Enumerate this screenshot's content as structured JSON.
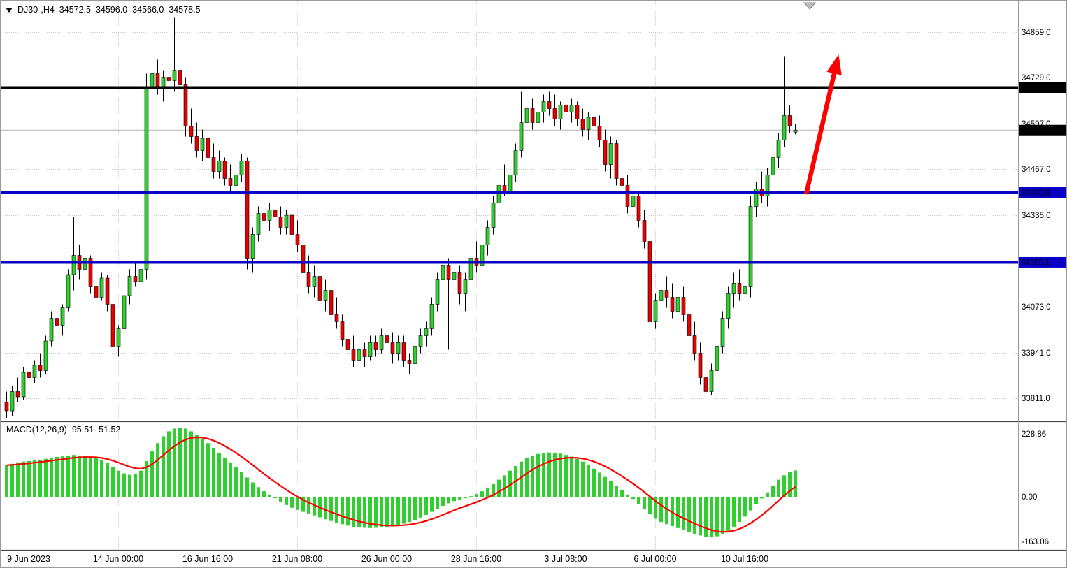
{
  "window": {
    "header": {
      "symbol_period": "DJ30-,H4",
      "open": "34572.5",
      "high": "34596.0",
      "low": "34566.0",
      "close": "34578.5"
    },
    "macd_label": {
      "name": "MACD(12,26,9)",
      "macd_value": "95.51",
      "signal_value": "51.52"
    }
  },
  "colors": {
    "bull": "#2fcf2f",
    "bear": "#e60000",
    "wick": "#000000",
    "grid": "#c9c9c9",
    "bid_line": "#b4b4b4",
    "histogram": "#2fcf2f",
    "signal": "#ff0000",
    "arrow": "#ff0000",
    "badge_text": "#ffffff",
    "separator": "#4a4a4a",
    "axis_border": "#9a9a9a",
    "shift_marker_fill": "#bdbdbd",
    "shift_marker_stroke": "#7f7f7f"
  },
  "chart_data": {
    "type": "candlestick+macd",
    "symbol": "DJ30-",
    "timeframe": "H4",
    "grid": true,
    "ylim": [
      33749,
      34949
    ],
    "price_axis_ticks": [
      "34859.0",
      "34729.0",
      "34597.0",
      "34467.0",
      "34335.0",
      "34203.0",
      "34073.0",
      "33941.0",
      "33811.0"
    ],
    "x_labels": [
      {
        "bar": 4,
        "label": "9 Jun 2023"
      },
      {
        "bar": 20,
        "label": "14 Jun 00:00"
      },
      {
        "bar": 36,
        "label": "16 Jun 16:00"
      },
      {
        "bar": 52,
        "label": "21 Jun 08:00"
      },
      {
        "bar": 68,
        "label": "26 Jun 00:00"
      },
      {
        "bar": 84,
        "label": "28 Jun 16:00"
      },
      {
        "bar": 100,
        "label": "3 Jul 08:00"
      },
      {
        "bar": 116,
        "label": "6 Jul 00:00"
      },
      {
        "bar": 132,
        "label": "10 Jul 16:00"
      }
    ],
    "hlines": [
      {
        "price": 34700.0,
        "label": "34700.0",
        "color": "#000000",
        "width": 4
      },
      {
        "price": 34400.0,
        "label": "34400.0",
        "color": "#0a00c4",
        "width": 4
      },
      {
        "price": 34200.1,
        "label": "34200.1",
        "color": "#0a00c4",
        "width": 4
      }
    ],
    "bid": {
      "price": 34578.5,
      "label": "34578.5"
    },
    "arrow": {
      "from_bar": 143,
      "from_price": 34395,
      "to_bar": 148.8,
      "to_price": 34795
    },
    "candles": [
      [
        33800,
        33830,
        33755,
        33775
      ],
      [
        33775,
        33845,
        33760,
        33830
      ],
      [
        33830,
        33870,
        33800,
        33815
      ],
      [
        33815,
        33900,
        33805,
        33885
      ],
      [
        33885,
        33930,
        33850,
        33870
      ],
      [
        33870,
        33920,
        33855,
        33905
      ],
      [
        33905,
        33940,
        33870,
        33890
      ],
      [
        33890,
        33990,
        33880,
        33975
      ],
      [
        33975,
        34060,
        33960,
        34040
      ],
      [
        34040,
        34100,
        34000,
        34020
      ],
      [
        34020,
        34080,
        33990,
        34070
      ],
      [
        34070,
        34180,
        34060,
        34165
      ],
      [
        34165,
        34330,
        34120,
        34220
      ],
      [
        34220,
        34250,
        34150,
        34180
      ],
      [
        34180,
        34230,
        34140,
        34210
      ],
      [
        34210,
        34220,
        34110,
        34130
      ],
      [
        34130,
        34180,
        34080,
        34100
      ],
      [
        34100,
        34170,
        34090,
        34155
      ],
      [
        34155,
        34165,
        34060,
        34080
      ],
      [
        34080,
        34090,
        33790,
        33960
      ],
      [
        33960,
        34020,
        33930,
        34010
      ],
      [
        34010,
        34120,
        34000,
        34105
      ],
      [
        34105,
        34180,
        34080,
        34160
      ],
      [
        34160,
        34200,
        34130,
        34145
      ],
      [
        34145,
        34195,
        34120,
        34180
      ],
      [
        34180,
        34740,
        34150,
        34700
      ],
      [
        34700,
        34760,
        34630,
        34740
      ],
      [
        34740,
        34780,
        34680,
        34700
      ],
      [
        34700,
        34750,
        34660,
        34730
      ],
      [
        34730,
        34860,
        34700,
        34720
      ],
      [
        34720,
        34900,
        34690,
        34750
      ],
      [
        34750,
        34780,
        34700,
        34710
      ],
      [
        34710,
        34730,
        34560,
        34590
      ],
      [
        34590,
        34640,
        34540,
        34560
      ],
      [
        34560,
        34600,
        34500,
        34520
      ],
      [
        34520,
        34580,
        34490,
        34555
      ],
      [
        34555,
        34570,
        34480,
        34500
      ],
      [
        34500,
        34540,
        34440,
        34460
      ],
      [
        34460,
        34520,
        34440,
        34490
      ],
      [
        34490,
        34500,
        34420,
        34440
      ],
      [
        34440,
        34480,
        34400,
        34420
      ],
      [
        34420,
        34470,
        34400,
        34450
      ],
      [
        34450,
        34510,
        34430,
        34490
      ],
      [
        34490,
        34500,
        34180,
        34210
      ],
      [
        34210,
        34300,
        34170,
        34280
      ],
      [
        34280,
        34360,
        34260,
        34340
      ],
      [
        34340,
        34380,
        34300,
        34320
      ],
      [
        34320,
        34370,
        34290,
        34350
      ],
      [
        34350,
        34380,
        34310,
        34330
      ],
      [
        34330,
        34360,
        34280,
        34300
      ],
      [
        34300,
        34350,
        34280,
        34335
      ],
      [
        34335,
        34350,
        34260,
        34280
      ],
      [
        34280,
        34320,
        34230,
        34250
      ],
      [
        34250,
        34260,
        34150,
        34170
      ],
      [
        34170,
        34220,
        34110,
        34130
      ],
      [
        34130,
        34190,
        34100,
        34160
      ],
      [
        34160,
        34170,
        34070,
        34090
      ],
      [
        34090,
        34150,
        34060,
        34120
      ],
      [
        34120,
        34130,
        34030,
        34050
      ],
      [
        34050,
        34100,
        34010,
        34030
      ],
      [
        34030,
        34050,
        33960,
        33980
      ],
      [
        33980,
        34020,
        33930,
        33950
      ],
      [
        33950,
        33990,
        33900,
        33920
      ],
      [
        33920,
        33970,
        33910,
        33950
      ],
      [
        33950,
        33970,
        33900,
        33930
      ],
      [
        33930,
        33990,
        33920,
        33970
      ],
      [
        33970,
        33990,
        33930,
        33950
      ],
      [
        33950,
        34010,
        33940,
        33990
      ],
      [
        33990,
        34020,
        33950,
        33970
      ],
      [
        33970,
        34000,
        33910,
        33940
      ],
      [
        33940,
        33990,
        33920,
        33970
      ],
      [
        33970,
        33990,
        33900,
        33920
      ],
      [
        33920,
        33940,
        33880,
        33910
      ],
      [
        33910,
        33970,
        33900,
        33960
      ],
      [
        33960,
        34010,
        33940,
        33990
      ],
      [
        33990,
        34030,
        33960,
        34010
      ],
      [
        34010,
        34100,
        33990,
        34080
      ],
      [
        34080,
        34170,
        34060,
        34150
      ],
      [
        34150,
        34220,
        34110,
        34190
      ],
      [
        34190,
        34210,
        33950,
        34150
      ],
      [
        34150,
        34200,
        34110,
        34170
      ],
      [
        34170,
        34190,
        34080,
        34110
      ],
      [
        34110,
        34170,
        34060,
        34150
      ],
      [
        34150,
        34230,
        34130,
        34210
      ],
      [
        34210,
        34260,
        34170,
        34190
      ],
      [
        34190,
        34270,
        34180,
        34250
      ],
      [
        34250,
        34320,
        34220,
        34300
      ],
      [
        34300,
        34390,
        34280,
        34370
      ],
      [
        34370,
        34440,
        34340,
        34420
      ],
      [
        34420,
        34480,
        34390,
        34400
      ],
      [
        34400,
        34470,
        34370,
        34450
      ],
      [
        34450,
        34540,
        34430,
        34520
      ],
      [
        34520,
        34690,
        34500,
        34600
      ],
      [
        34600,
        34660,
        34570,
        34640
      ],
      [
        34640,
        34670,
        34580,
        34600
      ],
      [
        34600,
        34650,
        34560,
        34630
      ],
      [
        34630,
        34680,
        34600,
        34660
      ],
      [
        34660,
        34690,
        34620,
        34640
      ],
      [
        34640,
        34680,
        34590,
        34610
      ],
      [
        34610,
        34660,
        34580,
        34650
      ],
      [
        34650,
        34680,
        34610,
        34630
      ],
      [
        34630,
        34670,
        34600,
        34650
      ],
      [
        34650,
        34660,
        34590,
        34610
      ],
      [
        34610,
        34640,
        34560,
        34580
      ],
      [
        34580,
        34630,
        34550,
        34615
      ],
      [
        34615,
        34650,
        34570,
        34590
      ],
      [
        34590,
        34620,
        34530,
        34550
      ],
      [
        34550,
        34580,
        34460,
        34480
      ],
      [
        34480,
        34560,
        34440,
        34540
      ],
      [
        34540,
        34550,
        34420,
        34440
      ],
      [
        34440,
        34490,
        34400,
        34420
      ],
      [
        34420,
        34450,
        34340,
        34360
      ],
      [
        34360,
        34410,
        34330,
        34390
      ],
      [
        34390,
        34400,
        34300,
        34320
      ],
      [
        34320,
        34350,
        34240,
        34260
      ],
      [
        34260,
        34280,
        33990,
        34030
      ],
      [
        34030,
        34110,
        34010,
        34090
      ],
      [
        34090,
        34150,
        34060,
        34120
      ],
      [
        34120,
        34160,
        34070,
        34100
      ],
      [
        34100,
        34140,
        34040,
        34060
      ],
      [
        34060,
        34120,
        34040,
        34100
      ],
      [
        34100,
        34130,
        34030,
        34050
      ],
      [
        34050,
        34080,
        33970,
        33990
      ],
      [
        33990,
        34030,
        33920,
        33940
      ],
      [
        33940,
        33970,
        33850,
        33870
      ],
      [
        33870,
        33900,
        33810,
        33830
      ],
      [
        33830,
        33910,
        33820,
        33890
      ],
      [
        33890,
        33980,
        33870,
        33960
      ],
      [
        33960,
        34060,
        33940,
        34040
      ],
      [
        34040,
        34130,
        34010,
        34110
      ],
      [
        34110,
        34170,
        34070,
        34140
      ],
      [
        34140,
        34180,
        34090,
        34110
      ],
      [
        34110,
        34160,
        34080,
        34130
      ],
      [
        34130,
        34390,
        34100,
        34360
      ],
      [
        34360,
        34430,
        34330,
        34410
      ],
      [
        34410,
        34460,
        34370,
        34390
      ],
      [
        34390,
        34470,
        34360,
        34450
      ],
      [
        34450,
        34520,
        34420,
        34500
      ],
      [
        34500,
        34570,
        34470,
        34550
      ],
      [
        34550,
        34790,
        34530,
        34620
      ],
      [
        34620,
        34650,
        34570,
        34590
      ],
      [
        34572.5,
        34596.0,
        34566.0,
        34578.5
      ]
    ],
    "macd": {
      "params": "12,26,9",
      "signal_period": 9,
      "axis_ticks": [
        "228.86",
        "0.00",
        "-163.06"
      ],
      "ylim": [
        -190,
        272
      ],
      "values": [
        115,
        120,
        125,
        128,
        130,
        133,
        135,
        138,
        142,
        145,
        147,
        150,
        152,
        150,
        148,
        145,
        140,
        132,
        122,
        108,
        95,
        85,
        80,
        82,
        95,
        130,
        165,
        195,
        220,
        238,
        248,
        252,
        248,
        238,
        225,
        210,
        195,
        178,
        160,
        142,
        125,
        108,
        90,
        70,
        52,
        35,
        20,
        8,
        -5,
        -18,
        -30,
        -40,
        -48,
        -55,
        -62,
        -68,
        -75,
        -82,
        -88,
        -94,
        -100,
        -105,
        -110,
        -112,
        -113,
        -114,
        -113,
        -112,
        -110,
        -107,
        -103,
        -98,
        -92,
        -85,
        -76,
        -66,
        -55,
        -44,
        -33,
        -24,
        -16,
        -10,
        -5,
        2,
        10,
        20,
        32,
        46,
        62,
        78,
        95,
        112,
        128,
        140,
        150,
        156,
        160,
        161,
        160,
        157,
        152,
        146,
        138,
        128,
        116,
        102,
        88,
        72,
        56,
        40,
        24,
        8,
        -8,
        -26,
        -45,
        -64,
        -80,
        -92,
        -100,
        -107,
        -114,
        -121,
        -128,
        -135,
        -141,
        -146,
        -148,
        -144,
        -136,
        -124,
        -109,
        -92,
        -72,
        -50,
        -28,
        -6,
        16,
        40,
        62,
        78,
        89,
        95.51
      ]
    }
  }
}
